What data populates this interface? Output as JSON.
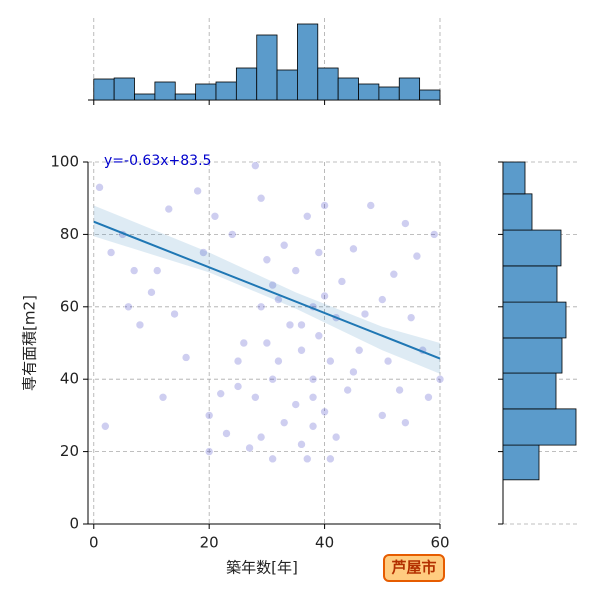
{
  "chart_data": [
    {
      "type": "scatter",
      "x_label": "築年数[年]",
      "y_label": "専有面積[m2]",
      "annotation": "y=-0.63x+83.5",
      "badge": "芦屋市",
      "color": "#3b3bc4",
      "xlim": [
        -1,
        60
      ],
      "ylim": [
        0,
        100
      ],
      "xticks": [
        0,
        20,
        40,
        60
      ],
      "yticks": [
        0,
        20,
        40,
        60,
        80,
        100
      ],
      "grid": true,
      "x": [
        1,
        3,
        5,
        6,
        8,
        10,
        11,
        13,
        14,
        16,
        18,
        20,
        20,
        21,
        22,
        23,
        24,
        25,
        26,
        27,
        28,
        28,
        29,
        29,
        30,
        30,
        31,
        31,
        32,
        32,
        33,
        33,
        34,
        35,
        35,
        36,
        36,
        37,
        37,
        38,
        38,
        38,
        39,
        39,
        40,
        40,
        41,
        41,
        42,
        42,
        43,
        44,
        45,
        46,
        47,
        48,
        50,
        51,
        52,
        53,
        54,
        55,
        56,
        58,
        59,
        60,
        2,
        7,
        12,
        19,
        25,
        29,
        31,
        36,
        38,
        40,
        45,
        50,
        54,
        57
      ],
      "y": [
        93,
        75,
        80,
        60,
        55,
        64,
        70,
        87,
        58,
        46,
        92,
        20,
        30,
        85,
        36,
        25,
        80,
        45,
        50,
        21,
        99,
        35,
        60,
        24,
        50,
        73,
        18,
        40,
        62,
        45,
        28,
        77,
        55,
        33,
        70,
        22,
        48,
        85,
        18,
        27,
        60,
        40,
        75,
        52,
        31,
        63,
        18,
        45,
        57,
        24,
        67,
        37,
        76,
        48,
        58,
        88,
        30,
        45,
        69,
        37,
        83,
        57,
        74,
        35,
        80,
        40,
        27,
        70,
        35,
        75,
        38,
        90,
        66,
        55,
        35,
        88,
        42,
        62,
        28,
        48
      ],
      "fit": {
        "color": "#1f77b4",
        "x": [
          0,
          60
        ],
        "y": [
          83.5,
          45.7
        ]
      },
      "ci": {
        "x": [
          0,
          20,
          35,
          50,
          60
        ],
        "lower": [
          79.5,
          69.5,
          59.5,
          48,
          41.5
        ],
        "upper": [
          88,
          75,
          64,
          54.5,
          50
        ]
      }
    },
    {
      "type": "histogram",
      "orientation": "vertical",
      "color": "#5b9bcb",
      "bins": [
        0,
        3.53,
        7.06,
        10.59,
        14.12,
        17.65,
        21.18,
        24.71,
        28.24,
        31.76,
        35.29,
        38.82,
        42.35,
        45.88,
        49.41,
        52.94,
        56.47,
        60
      ],
      "counts": [
        21,
        22,
        6,
        18,
        6,
        16,
        18,
        32,
        65,
        30,
        76,
        32,
        22,
        16,
        13,
        22,
        10
      ]
    },
    {
      "type": "histogram",
      "orientation": "horizontal",
      "color": "#5b9bcb",
      "bins": [
        12.2,
        21.8,
        31.8,
        41.7,
        51.4,
        61.3,
        71.3,
        81.2,
        91.2,
        100
      ],
      "counts": [
        36,
        73,
        53,
        59,
        63,
        54,
        58,
        29,
        22
      ]
    }
  ]
}
